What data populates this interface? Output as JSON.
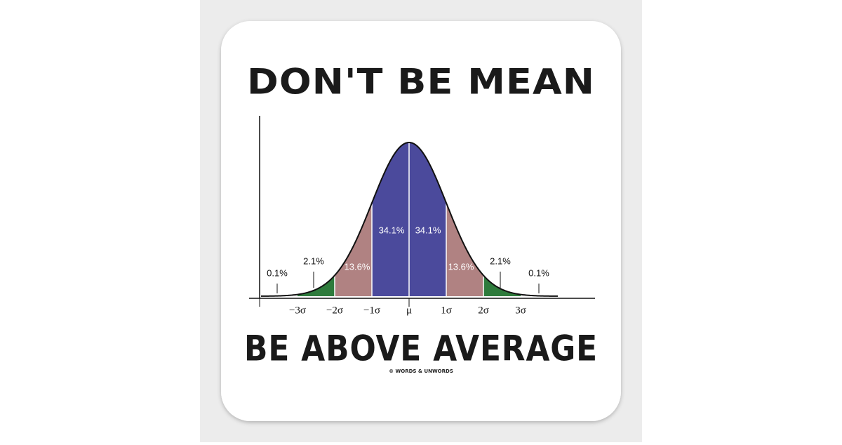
{
  "title": "DON'T BE MEAN",
  "subtitle": "BE ABOVE AVERAGE",
  "credit": "© WORDS & UNWORDS",
  "diagram": {
    "region_labels": [
      "0.1%",
      "2.1%",
      "13.6%",
      "34.1%",
      "34.1%",
      "13.6%",
      "2.1%",
      "0.1%"
    ],
    "axis_labels": [
      "−3σ",
      "−2σ",
      "−1σ",
      "μ",
      "1σ",
      "2σ",
      "3σ"
    ]
  }
}
